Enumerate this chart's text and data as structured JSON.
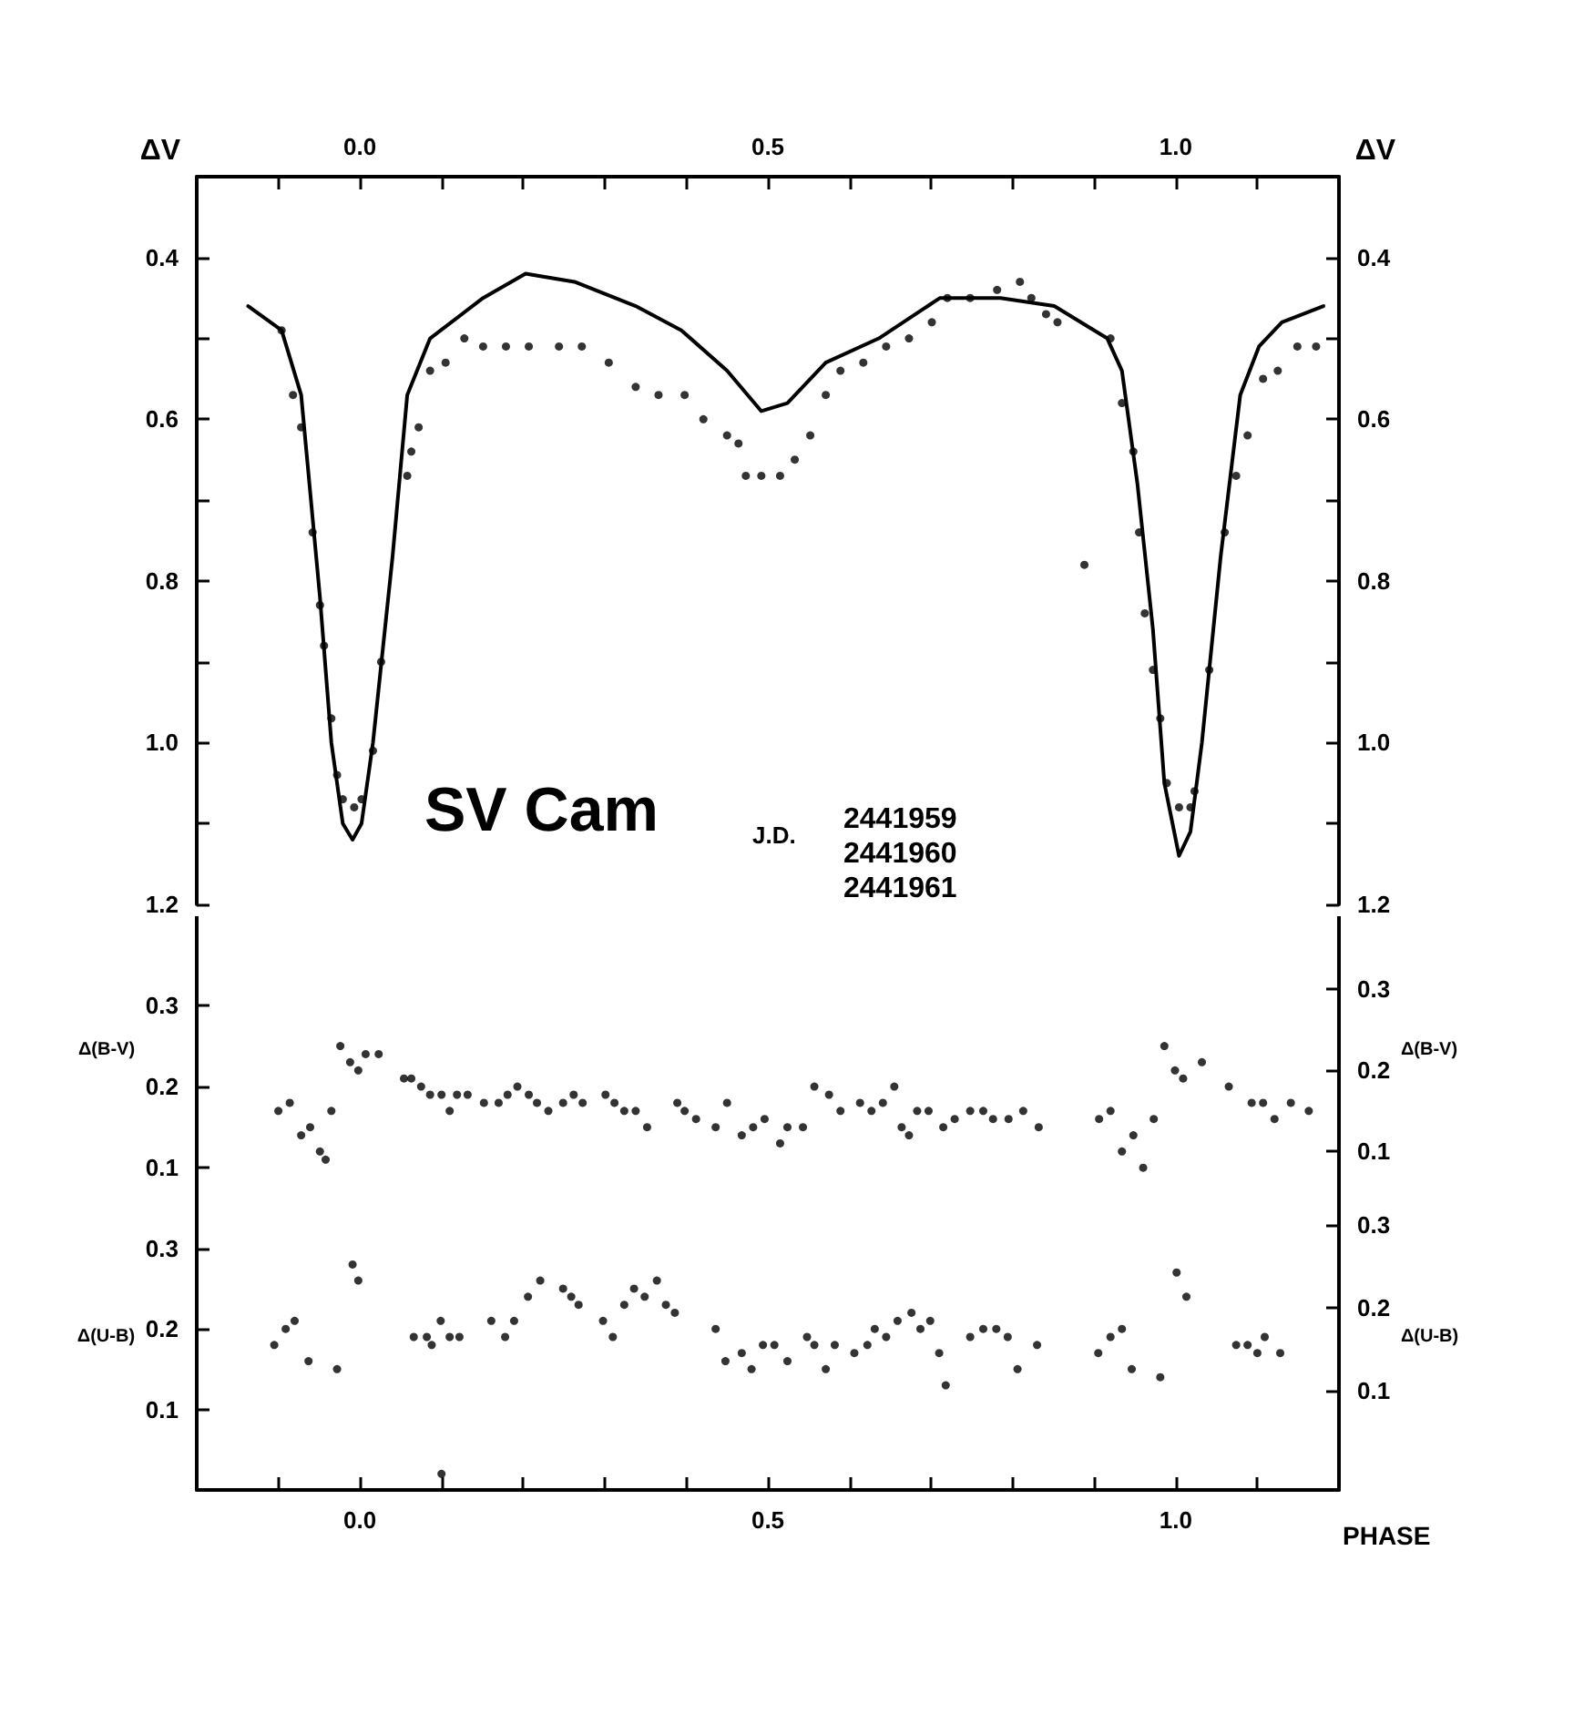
{
  "chart_data": [
    {
      "type": "scatter",
      "ylabel": "ΔV",
      "y2label": "ΔV",
      "annotations": [
        "SV Cam",
        "J.D.",
        "2441959",
        "2441960",
        "2441961"
      ],
      "xlim": [
        -0.2,
        1.2
      ],
      "x2lim": [
        -0.2,
        1.2
      ],
      "x2ticks": [
        {
          "value": -0.1,
          "label": null
        },
        {
          "value": 0,
          "label": "0.0"
        },
        {
          "value": 0.1,
          "label": null
        },
        {
          "value": 0.2,
          "label": null
        },
        {
          "value": 0.3,
          "label": null
        },
        {
          "value": 0.4,
          "label": null
        },
        {
          "value": 0.5,
          "label": "0.5"
        },
        {
          "value": 0.6,
          "label": null
        },
        {
          "value": 0.7,
          "label": null
        },
        {
          "value": 0.8,
          "label": null
        },
        {
          "value": 0.9,
          "label": null
        },
        {
          "value": 1,
          "label": "1.0"
        },
        {
          "value": 1.1,
          "label": null
        }
      ],
      "ylim": [
        1.2,
        0.3
      ],
      "yticks": [
        0.4,
        {
          "value": 0.5,
          "label": null
        },
        0.6,
        {
          "value": 0.7,
          "label": null
        },
        0.8,
        {
          "value": 0.9,
          "label": null
        },
        {
          "value": 1,
          "label": "1.0"
        },
        {
          "value": 1.1,
          "label": null
        },
        1.2
      ],
      "y2lim": [
        1.2,
        0.3
      ],
      "y2ticks": [
        0.4,
        {
          "value": 0.5,
          "label": null
        },
        0.6,
        {
          "value": 0.7,
          "label": null
        },
        0.8,
        {
          "value": 0.9,
          "label": null
        },
        {
          "value": 1,
          "label": "1.0"
        },
        {
          "value": 1.1,
          "label": null
        },
        1.2
      ],
      "tick_labels": "y",
      "series": [
        {
          "type": "line",
          "marker": "none",
          "line_style": "solid",
          "color": "#000000",
          "x": [
            -0.137,
            -0.096,
            -0.072,
            -0.049,
            -0.035,
            -0.021,
            -0.009,
            0.002,
            0.016,
            0.04,
            0.058,
            0.086,
            0.151,
            0.203,
            0.263,
            0.338,
            0.394,
            0.45,
            0.492,
            0.524,
            0.571,
            0.636,
            0.711,
            0.785,
            0.851,
            0.916,
            0.934,
            0.953,
            0.972,
            0.986,
            1.004,
            1.018,
            1.032,
            1.055,
            1.079,
            1.102,
            1.13,
            1.181
          ],
          "values": [
            0.46,
            0.49,
            0.57,
            0.82,
            1.0,
            1.1,
            1.12,
            1.1,
            1.0,
            0.77,
            0.57,
            0.5,
            0.45,
            0.42,
            0.43,
            0.46,
            0.49,
            0.54,
            0.59,
            0.58,
            0.53,
            0.5,
            0.45,
            0.45,
            0.46,
            0.5,
            0.54,
            0.68,
            0.86,
            1.05,
            1.14,
            1.11,
            1.0,
            0.77,
            0.57,
            0.51,
            0.48,
            0.46
          ]
        },
        {
          "marker": "circle",
          "color": "#000000",
          "x": [
            -0.096,
            -0.082,
            -0.072,
            -0.058,
            -0.049,
            -0.044,
            -0.035,
            -0.028,
            -0.021,
            -0.007,
            0.002,
            0.016,
            0.026,
            0.058,
            0.063,
            0.072,
            0.086,
            0.105,
            0.128,
            0.151,
            0.179,
            0.207,
            0.244,
            0.272,
            0.305,
            0.338,
            0.366,
            0.398,
            0.421,
            0.45,
            0.464,
            0.473,
            0.492,
            0.515,
            0.533,
            0.552,
            0.571,
            0.589,
            0.617,
            0.645,
            0.673,
            0.701,
            0.72,
            0.748,
            0.781,
            0.809,
            0.823,
            0.841,
            0.855,
            0.888,
            0.92,
            0.934,
            0.948,
            0.955,
            0.962,
            0.972,
            0.981,
            0.989,
            1.004,
            1.018,
            1.023,
            1.041,
            1.06,
            1.074,
            1.088,
            1.107,
            1.125,
            1.149,
            1.172
          ],
          "values": [
            0.49,
            0.57,
            0.61,
            0.74,
            0.83,
            0.88,
            0.97,
            1.04,
            1.07,
            1.08,
            1.07,
            1.01,
            0.9,
            0.67,
            0.64,
            0.61,
            0.54,
            0.53,
            0.5,
            0.51,
            0.51,
            0.51,
            0.51,
            0.51,
            0.53,
            0.56,
            0.57,
            0.57,
            0.6,
            0.62,
            0.63,
            0.67,
            0.67,
            0.67,
            0.65,
            0.62,
            0.57,
            0.54,
            0.53,
            0.51,
            0.5,
            0.48,
            0.45,
            0.45,
            0.44,
            0.43,
            0.45,
            0.47,
            0.48,
            0.78,
            0.5,
            0.58,
            0.64,
            0.74,
            0.84,
            0.91,
            0.97,
            1.05,
            1.08,
            1.08,
            1.06,
            0.91,
            0.74,
            0.67,
            0.62,
            0.55,
            0.54,
            0.51,
            0.51
          ]
        }
      ]
    },
    {
      "type": "scatter",
      "ylabel": "Δ(B-V)",
      "y2label": "Δ(B-V)",
      "xlim": [
        -0.2,
        1.2
      ],
      "ylim": [
        0.08,
        0.41
      ],
      "yticks": [
        0.1,
        0.2,
        0.3
      ],
      "y2lim": [
        0.06,
        0.39
      ],
      "y2ticks": [
        0.1,
        0.2,
        0.3
      ],
      "tick_labels": "y",
      "marker": "circle",
      "series": [
        {
          "color": "#000000",
          "x": [
            -0.1,
            -0.086,
            -0.072,
            -0.061,
            -0.049,
            -0.042,
            -0.035,
            -0.024,
            -0.012,
            -0.002,
            0.007,
            0.023,
            0.054,
            0.063,
            0.075,
            0.086,
            0.1,
            0.11,
            0.119,
            0.132,
            0.152,
            0.17,
            0.181,
            0.193,
            0.207,
            0.217,
            0.231,
            0.249,
            0.262,
            0.273,
            0.301,
            0.312,
            0.324,
            0.338,
            0.352,
            0.389,
            0.398,
            0.412,
            0.436,
            0.45,
            0.468,
            0.482,
            0.496,
            0.515,
            0.524,
            0.543,
            0.557,
            0.575,
            0.589,
            0.613,
            0.627,
            0.641,
            0.655,
            0.664,
            0.673,
            0.683,
            0.697,
            0.715,
            0.729,
            0.748,
            0.764,
            0.776,
            0.795,
            0.813,
            0.832,
            0.906,
            0.92,
            0.934,
            0.948,
            0.96,
            0.973,
            0.986,
            0.999,
            1.009,
            1.032,
            1.065,
            1.093,
            1.107,
            1.121,
            1.141,
            1.163
          ],
          "values": [
            0.17,
            0.18,
            0.14,
            0.15,
            0.12,
            0.11,
            0.17,
            0.25,
            0.23,
            0.22,
            0.24,
            0.24,
            0.21,
            0.21,
            0.2,
            0.19,
            0.19,
            0.17,
            0.19,
            0.19,
            0.18,
            0.18,
            0.19,
            0.2,
            0.19,
            0.18,
            0.17,
            0.18,
            0.19,
            0.18,
            0.19,
            0.18,
            0.17,
            0.17,
            0.15,
            0.18,
            0.17,
            0.16,
            0.15,
            0.18,
            0.14,
            0.15,
            0.16,
            0.13,
            0.15,
            0.15,
            0.2,
            0.19,
            0.17,
            0.18,
            0.17,
            0.18,
            0.2,
            0.15,
            0.14,
            0.17,
            0.17,
            0.15,
            0.16,
            0.17,
            0.17,
            0.16,
            0.16,
            0.17,
            0.15,
            0.16,
            0.17,
            0.12,
            0.14,
            0.1,
            0.16,
            0.25,
            0.22,
            0.21,
            0.23,
            0.2,
            0.18,
            0.18,
            0.16,
            0.18,
            0.17
          ]
        }
      ]
    },
    {
      "type": "scatter",
      "ylabel": "Δ(U-B)",
      "y2label": "Δ(U-B)",
      "xlabel": "PHASE",
      "xlim": [
        -0.2,
        1.2
      ],
      "xticks": [
        {
          "value": -0.1,
          "label": null
        },
        {
          "value": 0,
          "label": "0.0"
        },
        {
          "value": 0.1,
          "label": null
        },
        {
          "value": 0.2,
          "label": null
        },
        {
          "value": 0.3,
          "label": null
        },
        {
          "value": 0.4,
          "label": null
        },
        {
          "value": 0.5,
          "label": "0.5"
        },
        {
          "value": 0.6,
          "label": null
        },
        {
          "value": 0.7,
          "label": null
        },
        {
          "value": 0.8,
          "label": null
        },
        {
          "value": 0.9,
          "label": null
        },
        {
          "value": 1,
          "label": "1.0"
        },
        {
          "value": 1.1,
          "label": null
        }
      ],
      "ylim": [
        0.0,
        0.38
      ],
      "yticks": [
        0.1,
        0.2,
        0.3
      ],
      "y2lim": [
        -0.02,
        0.35
      ],
      "y2ticks": [
        0.1,
        0.2,
        0.3
      ],
      "marker": "circle",
      "series": [
        {
          "color": "#000000",
          "x": [
            -0.105,
            -0.091,
            -0.08,
            -0.063,
            -0.028,
            -0.009,
            -0.002,
            0.066,
            0.082,
            0.088,
            0.099,
            0.1,
            0.11,
            0.122,
            0.161,
            0.178,
            0.189,
            0.206,
            0.221,
            0.249,
            0.259,
            0.268,
            0.298,
            0.31,
            0.324,
            0.336,
            0.349,
            0.364,
            0.375,
            0.386,
            0.436,
            0.448,
            0.468,
            0.48,
            0.494,
            0.508,
            0.524,
            0.548,
            0.557,
            0.571,
            0.582,
            0.606,
            0.622,
            0.631,
            0.645,
            0.659,
            0.676,
            0.687,
            0.699,
            0.71,
            0.718,
            0.748,
            0.764,
            0.78,
            0.794,
            0.806,
            0.83,
            0.905,
            0.92,
            0.934,
            0.946,
            0.981,
            1.001,
            1.013,
            1.074,
            1.088,
            1.1,
            1.109,
            1.128
          ],
          "values": [
            0.18,
            0.2,
            0.21,
            0.16,
            0.15,
            0.28,
            0.26,
            0.19,
            0.19,
            0.18,
            0.21,
            0.02,
            0.19,
            0.19,
            0.21,
            0.19,
            0.21,
            0.24,
            0.26,
            0.25,
            0.24,
            0.23,
            0.21,
            0.19,
            0.23,
            0.25,
            0.24,
            0.26,
            0.23,
            0.22,
            0.2,
            0.16,
            0.17,
            0.15,
            0.18,
            0.18,
            0.16,
            0.19,
            0.18,
            0.15,
            0.18,
            0.17,
            0.18,
            0.2,
            0.19,
            0.21,
            0.22,
            0.2,
            0.21,
            0.17,
            0.13,
            0.19,
            0.2,
            0.2,
            0.19,
            0.15,
            0.18,
            0.17,
            0.19,
            0.2,
            0.15,
            0.14,
            0.27,
            0.24,
            0.18,
            0.18,
            0.17,
            0.19,
            0.17
          ]
        }
      ]
    }
  ]
}
